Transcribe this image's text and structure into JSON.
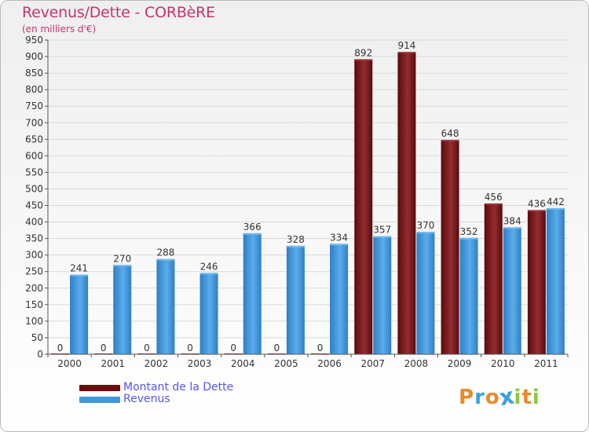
{
  "header": {
    "title": "Revenus/Dette - CORBèRE",
    "subtitle": "(en milliers d'€)"
  },
  "legend": {
    "items": [
      {
        "label": "Montant de la Dette",
        "color": "#6b0d10"
      },
      {
        "label": "Revenus",
        "color": "#3f97de"
      }
    ]
  },
  "logo": {
    "letters": [
      "P",
      "r",
      "o",
      "x",
      "i",
      "t",
      "i"
    ],
    "colors": [
      "#e98a2a",
      "#3aa0e0",
      "#e98a2a",
      "#3aa0e0",
      "#8dc63f",
      "#e98a2a",
      "#8dc63f"
    ]
  },
  "colors": {
    "debt_dark": "#5a0b0e",
    "debt_light": "#922d30",
    "rev_dark": "#2f7fc6",
    "rev_light": "#5aaceb",
    "grid": "#d9d9d9"
  },
  "chart_data": {
    "type": "bar",
    "title": "Revenus/Dette - CORBèRE",
    "ylabel": "(en milliers d'€)",
    "xlabel": "",
    "categories": [
      "2000",
      "2001",
      "2002",
      "2003",
      "2004",
      "2005",
      "2006",
      "2007",
      "2008",
      "2009",
      "2010",
      "2011"
    ],
    "series": [
      {
        "name": "Montant de la Dette",
        "values": [
          0,
          0,
          0,
          0,
          0,
          0,
          0,
          892,
          914,
          648,
          456,
          436
        ]
      },
      {
        "name": "Revenus",
        "values": [
          241,
          270,
          288,
          246,
          366,
          328,
          334,
          357,
          370,
          352,
          384,
          442
        ]
      }
    ],
    "ylim": [
      0,
      950
    ],
    "ytick_step": 50,
    "yticks": [
      "0",
      "50",
      "100",
      "150",
      "200",
      "250",
      "300",
      "350",
      "400",
      "450",
      "500",
      "550",
      "600",
      "650",
      "700",
      "750",
      "800",
      "850",
      "900",
      "950"
    ],
    "grid": true,
    "legend_position": "bottom-left"
  }
}
